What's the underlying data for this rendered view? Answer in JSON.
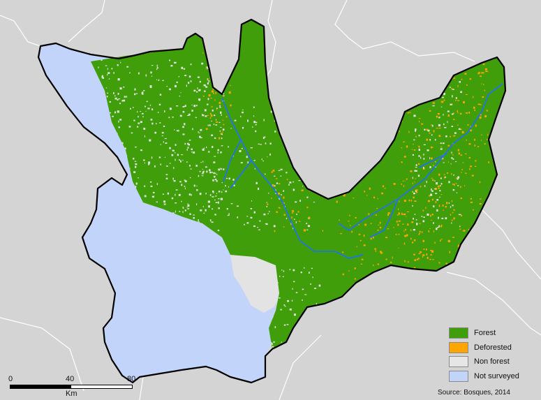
{
  "map": {
    "colors": {
      "background": "#d4d4d4",
      "forest": "#3f9e0a",
      "deforested": "#ffa500",
      "non_forest": "#e3e3e3",
      "not_surveyed": "#c3d4fb",
      "river": "#1f6fff",
      "border": "#000000",
      "neighbor_borders": "#ffffff"
    }
  },
  "legend": {
    "items": [
      {
        "label": "Forest",
        "color": "#3f9e0a"
      },
      {
        "label": "Deforested",
        "color": "#ffa500"
      },
      {
        "label": "Non forest",
        "color": "#e6e6e6"
      },
      {
        "label": "Not surveyed",
        "color": "#c3d4fb"
      }
    ]
  },
  "scale": {
    "ticks": [
      "0",
      "40",
      "80"
    ],
    "unit": "Km"
  },
  "source": "Source: Bosques, 2014"
}
